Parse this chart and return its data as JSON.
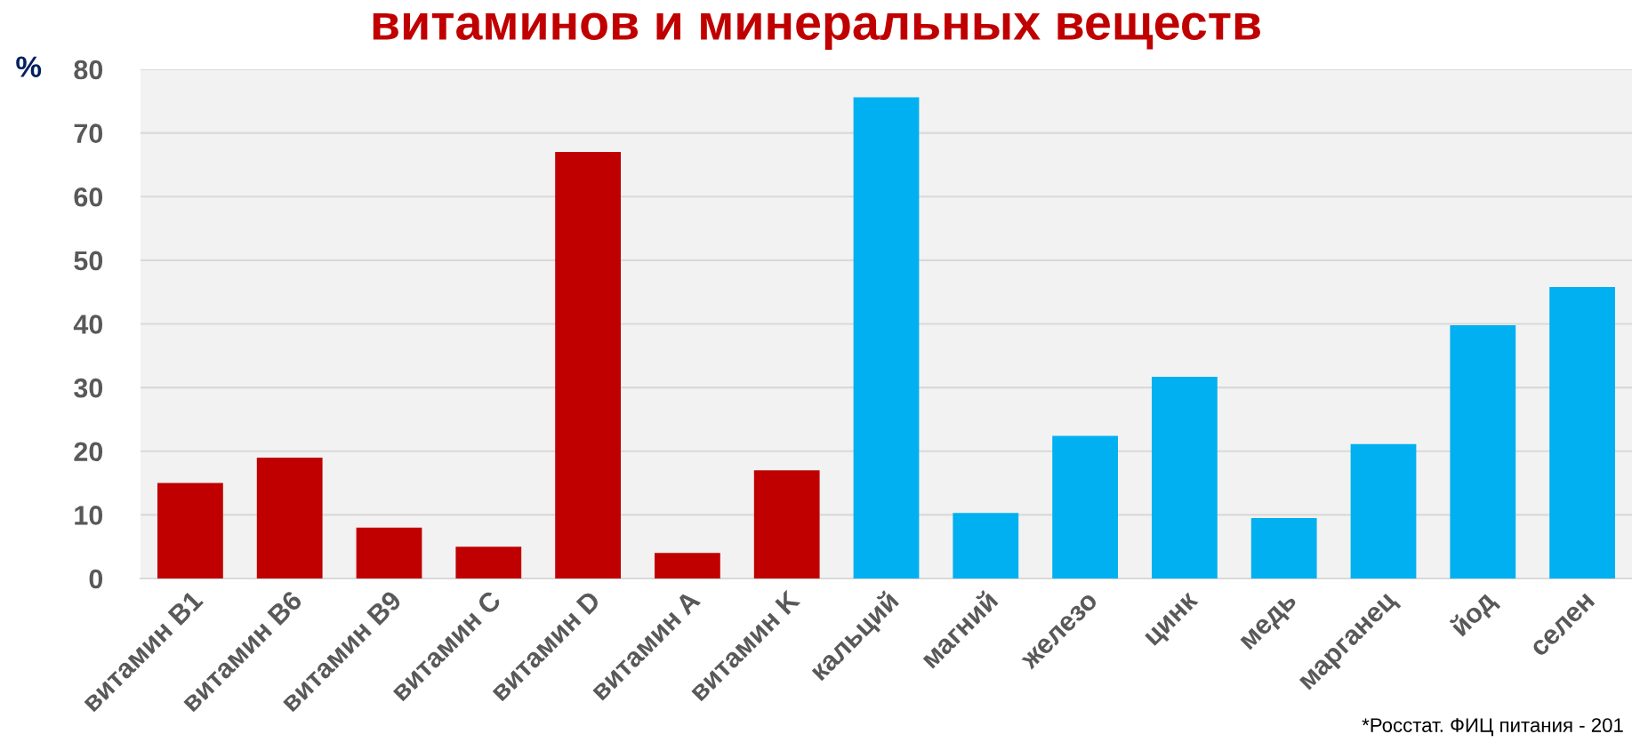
{
  "chart_data": {
    "type": "bar",
    "title": "витаминов и минеральных веществ",
    "ylabel": "%",
    "categories": [
      "витамин B1",
      "витамин B6",
      "витамин B9",
      "витамин C",
      "витамин D",
      "витамин A",
      "витамин K",
      "кальций",
      "магний",
      "железо",
      "цинк",
      "медь",
      "марганец",
      "йод",
      "селен"
    ],
    "values": [
      15,
      19,
      8,
      5,
      67,
      4,
      17,
      75.6,
      10.3,
      22.4,
      31.7,
      9.5,
      21.1,
      39.8,
      45.8
    ],
    "colors": [
      "#c00000",
      "#c00000",
      "#c00000",
      "#c00000",
      "#c00000",
      "#c00000",
      "#c00000",
      "#00b0f0",
      "#00b0f0",
      "#00b0f0",
      "#00b0f0",
      "#00b0f0",
      "#00b0f0",
      "#00b0f0",
      "#00b0f0"
    ],
    "ylim": [
      0,
      80
    ],
    "yticks": [
      0,
      10,
      20,
      30,
      40,
      50,
      60,
      70,
      80
    ],
    "grid": "y",
    "annotations": [
      "*Росстат. ФИЦ питания - 201"
    ]
  }
}
